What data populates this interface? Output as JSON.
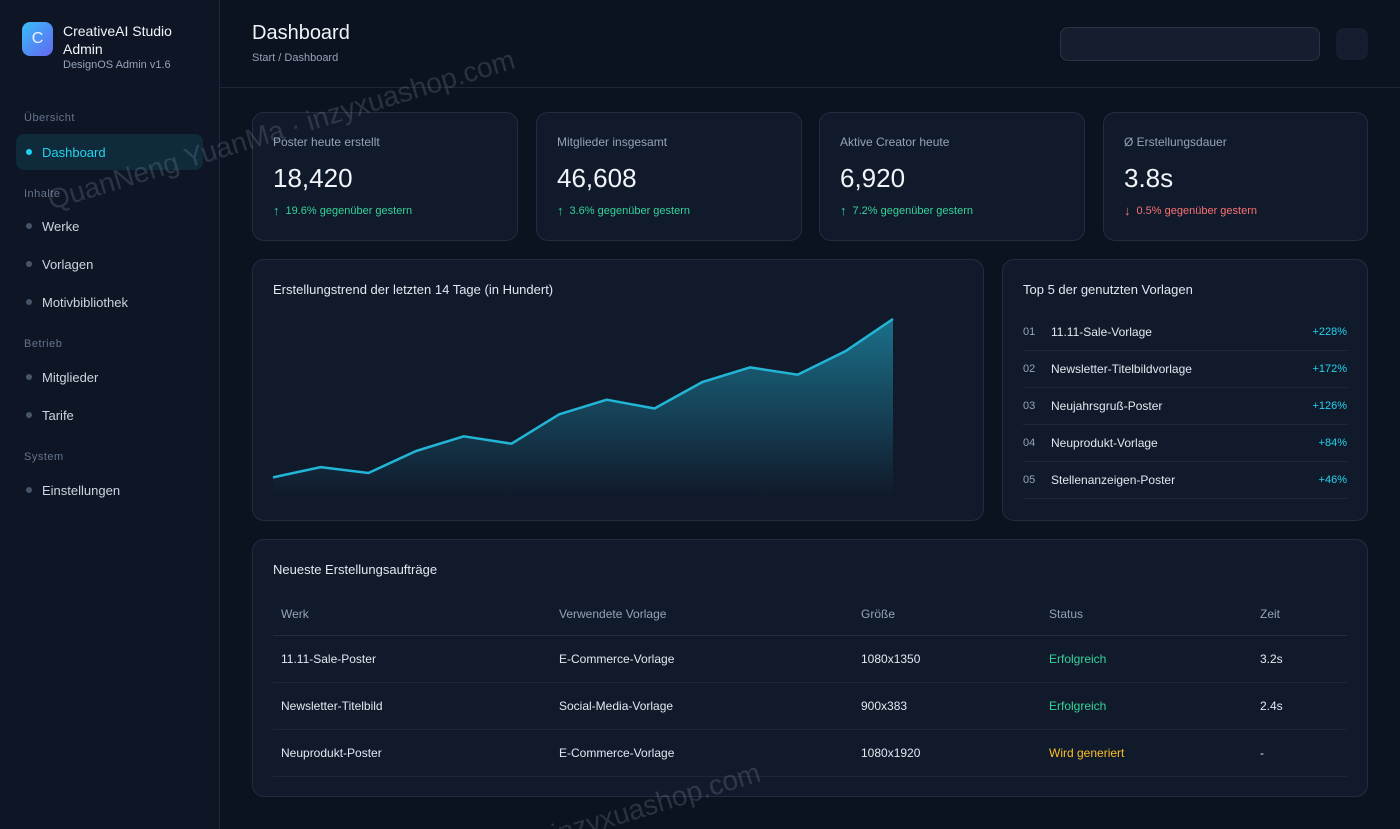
{
  "brand": {
    "logo_letter": "C",
    "name": "CreativeAI Studio Admin",
    "subtitle": "DesignOS Admin v1.6"
  },
  "sidebar": {
    "sections": [
      "Übersicht",
      "Inhalte",
      "Betrieb",
      "System"
    ],
    "items": [
      {
        "label": "Dashboard",
        "active": true
      },
      {
        "label": "Werke"
      },
      {
        "label": "Vorlagen"
      },
      {
        "label": "Motivbibliothek"
      },
      {
        "label": "Mitglieder"
      },
      {
        "label": "Tarife"
      },
      {
        "label": "Einstellungen"
      }
    ]
  },
  "header": {
    "title": "Dashboard",
    "breadcrumb": "Start / Dashboard"
  },
  "stats": [
    {
      "label": "Poster heute erstellt",
      "value": "18,420",
      "arrow": "↑",
      "change": "19.6% gegenüber gestern",
      "trend": "up"
    },
    {
      "label": "Mitglieder insgesamt",
      "value": "46,608",
      "arrow": "↑",
      "change": "3.6% gegenüber gestern",
      "trend": "up"
    },
    {
      "label": "Aktive Creator heute",
      "value": "6,920",
      "arrow": "↑",
      "change": "7.2% gegenüber gestern",
      "trend": "up"
    },
    {
      "label": "Ø Erstellungsdauer",
      "value": "3.8s",
      "arrow": "↓",
      "change": "0.5% gegenüber gestern",
      "trend": "down"
    }
  ],
  "chart_data": {
    "type": "area",
    "title": "Erstellungstrend der letzten 14 Tage (in Hundert)",
    "x": [
      1,
      2,
      3,
      4,
      5,
      6,
      7,
      8,
      9,
      10,
      11,
      12,
      13,
      14
    ],
    "values": [
      12,
      19,
      15,
      30,
      40,
      35,
      55,
      65,
      59,
      77,
      87,
      82,
      98,
      120
    ],
    "ylim": [
      0,
      120
    ],
    "grid": false,
    "color": "#22b5d6"
  },
  "top_templates": {
    "title": "Top 5 der genutzten Vorlagen",
    "items": [
      {
        "rank": "01",
        "name": "11.11-Sale-Vorlage",
        "pct": "+228%"
      },
      {
        "rank": "02",
        "name": "Newsletter-Titelbildvorlage",
        "pct": "+172%"
      },
      {
        "rank": "03",
        "name": "Neujahrsgruß-Poster",
        "pct": "+126%"
      },
      {
        "rank": "04",
        "name": "Neuprodukt-Vorlage",
        "pct": "+84%"
      },
      {
        "rank": "05",
        "name": "Stellenanzeigen-Poster",
        "pct": "+46%"
      }
    ]
  },
  "orders": {
    "title": "Neueste Erstellungsaufträge",
    "columns": [
      "Werk",
      "Verwendete Vorlage",
      "Größe",
      "Status",
      "Zeit"
    ],
    "rows": [
      {
        "werk": "11.11-Sale-Poster",
        "vorlage": "E-Commerce-Vorlage",
        "groesse": "1080x1350",
        "status": "Erfolgreich",
        "status_type": "ok",
        "zeit": "3.2s"
      },
      {
        "werk": "Newsletter-Titelbild",
        "vorlage": "Social-Media-Vorlage",
        "groesse": "900x383",
        "status": "Erfolgreich",
        "status_type": "ok",
        "zeit": "2.4s"
      },
      {
        "werk": "Neuprodukt-Poster",
        "vorlage": "E-Commerce-Vorlage",
        "groesse": "1080x1920",
        "status": "Wird generiert",
        "status_type": "pending",
        "zeit": "-"
      }
    ]
  },
  "watermarks": [
    "QuanNeng YuanMa · inzyxuashop.com",
    "inzyxuashop.com"
  ]
}
